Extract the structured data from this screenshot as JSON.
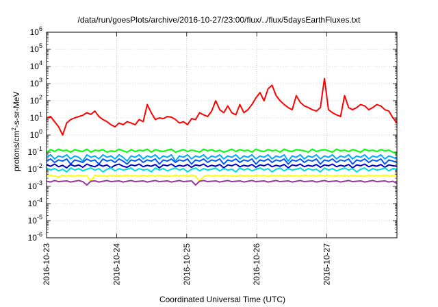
{
  "chart_data": {
    "type": "line",
    "title": "/data/run/goesPlots/archive/2016-10-27/23:00/flux/../flux/5daysEarthFluxes.txt",
    "xlabel": "Coordinated Universal Time (UTC)",
    "ylabel": {
      "prefix": "protons/cm",
      "sup": "2",
      "suffix": "-s-sr-MeV"
    },
    "y_scale": "log",
    "ylim": [
      1e-06,
      1000000.0
    ],
    "y_ticks": [
      {
        "exp": "-6"
      },
      {
        "exp": "-5"
      },
      {
        "exp": "-4"
      },
      {
        "exp": "-3"
      },
      {
        "exp": "-2"
      },
      {
        "exp": "-1"
      },
      {
        "exp": "0"
      },
      {
        "exp": "1"
      },
      {
        "exp": "2"
      },
      {
        "exp": "3"
      },
      {
        "exp": "4"
      },
      {
        "exp": "5"
      },
      {
        "exp": "6"
      }
    ],
    "y_tick_base": "10",
    "xlim": [
      "2016-10-23 00:00",
      "2016-10-28 00:00"
    ],
    "x_ticks": [
      "2016-10-23",
      "2016-10-24",
      "2016-10-25",
      "2016-10-26",
      "2016-10-27"
    ],
    "grid": true,
    "legend": "none",
    "series": [
      {
        "color": "#ff0000",
        "values": [
          10,
          12,
          6,
          3,
          1,
          5,
          8,
          10,
          12,
          14,
          20,
          16,
          25,
          12,
          8,
          6,
          4,
          3,
          5,
          4,
          6,
          5,
          4,
          8,
          6,
          60,
          20,
          8,
          10,
          9,
          12,
          11,
          8,
          5,
          6,
          4,
          9,
          8,
          20,
          15,
          12,
          25,
          100,
          30,
          20,
          50,
          20,
          15,
          60,
          20,
          30,
          60,
          150,
          300,
          100,
          500,
          800,
          200,
          100,
          60,
          40,
          30,
          200,
          80,
          50,
          40,
          30,
          25,
          40,
          2000,
          30,
          20,
          15,
          12,
          200,
          40,
          30,
          40,
          60,
          50,
          30,
          40,
          60,
          50,
          30,
          25,
          10,
          5
        ]
      },
      {
        "color": "#00ff00",
        "values": [
          0.1,
          0.14,
          0.11,
          0.15,
          0.12,
          0.13,
          0.1,
          0.14,
          0.12,
          0.11,
          0.15,
          0.1,
          0.13,
          0.12,
          0.14,
          0.1,
          0.12,
          0.11,
          0.15,
          0.12,
          0.1,
          0.14,
          0.11,
          0.13,
          0.12,
          0.15,
          0.1,
          0.14,
          0.12,
          0.11,
          0.13,
          0.15,
          0.1,
          0.12,
          0.14,
          0.11,
          0.13,
          0.12,
          0.1,
          0.15,
          0.12,
          0.14,
          0.11,
          0.13,
          0.1,
          0.12,
          0.15,
          0.11,
          0.14,
          0.12,
          0.13,
          0.1,
          0.15,
          0.12,
          0.11,
          0.14,
          0.12,
          0.13,
          0.1,
          0.15,
          0.12,
          0.11,
          0.14,
          0.13,
          0.12,
          0.1,
          0.15,
          0.11,
          0.13,
          0.14,
          0.12,
          0.1,
          0.15,
          0.12,
          0.13,
          0.11,
          0.14,
          0.12,
          0.1,
          0.15,
          0.12,
          0.13,
          0.11,
          0.14,
          0.12,
          0.13,
          0.1,
          0.08
        ]
      },
      {
        "color": "#00aaff",
        "values": [
          0.05,
          0.07,
          0.04,
          0.06,
          0.05,
          0.07,
          0.04,
          0.06,
          0.05,
          0.03,
          0.07,
          0.05,
          0.06,
          0.04,
          0.07,
          0.05,
          0.06,
          0.04,
          0.07,
          0.05,
          0.03,
          0.06,
          0.05,
          0.07,
          0.04,
          0.06,
          0.05,
          0.07,
          0.04,
          0.06,
          0.05,
          0.07,
          0.03,
          0.06,
          0.05,
          0.07,
          0.04,
          0.06,
          0.05,
          0.07,
          0.04,
          0.06,
          0.05,
          0.07,
          0.04,
          0.06,
          0.05,
          0.07,
          0.04,
          0.06,
          0.05,
          0.07,
          0.04,
          0.06,
          0.05,
          0.07,
          0.04,
          0.06,
          0.05,
          0.07,
          0.03,
          0.06,
          0.05,
          0.07,
          0.04,
          0.06,
          0.05,
          0.07,
          0.04,
          0.06,
          0.05,
          0.07,
          0.04,
          0.06,
          0.05,
          0.07,
          0.04,
          0.06,
          0.05,
          0.07,
          0.04,
          0.06,
          0.05,
          0.07,
          0.04,
          0.06,
          0.05,
          0.04
        ]
      },
      {
        "color": "#0055ff",
        "values": [
          0.03,
          0.04,
          0.025,
          0.035,
          0.03,
          0.04,
          0.02,
          0.035,
          0.03,
          0.025,
          0.04,
          0.03,
          0.035,
          0.02,
          0.04,
          0.03,
          0.035,
          0.025,
          0.04,
          0.03,
          0.02,
          0.035,
          0.03,
          0.04,
          0.025,
          0.035,
          0.03,
          0.04,
          0.02,
          0.035,
          0.03,
          0.04,
          0.025,
          0.035,
          0.03,
          0.04,
          0.02,
          0.035,
          0.03,
          0.04,
          0.025,
          0.035,
          0.03,
          0.04,
          0.02,
          0.035,
          0.03,
          0.04,
          0.025,
          0.035,
          0.03,
          0.04,
          0.02,
          0.035,
          0.03,
          0.04,
          0.025,
          0.035,
          0.03,
          0.04,
          0.02,
          0.035,
          0.03,
          0.04,
          0.025,
          0.035,
          0.03,
          0.04,
          0.02,
          0.035,
          0.03,
          0.04,
          0.025,
          0.035,
          0.03,
          0.04,
          0.02,
          0.035,
          0.03,
          0.04,
          0.025,
          0.035,
          0.03,
          0.04,
          0.02,
          0.035,
          0.03,
          0.025
        ]
      },
      {
        "color": "#0000cc",
        "values": [
          0.018,
          0.015,
          0.02,
          0.014,
          0.017,
          0.012,
          0.019,
          0.015,
          0.018,
          0.013,
          0.02,
          0.016,
          0.014,
          0.019,
          0.015,
          0.018,
          0.012,
          0.017,
          0.02,
          0.015,
          0.013,
          0.018,
          0.016,
          0.02,
          0.014,
          0.017,
          0.015,
          0.019,
          0.012,
          0.018,
          0.016,
          0.02,
          0.014,
          0.017,
          0.015,
          0.019,
          0.013,
          0.018,
          0.016,
          0.02,
          0.014,
          0.017,
          0.015,
          0.019,
          0.012,
          0.018,
          0.016,
          0.02,
          0.014,
          0.017,
          0.015,
          0.019,
          0.013,
          0.018,
          0.016,
          0.02,
          0.014,
          0.017,
          0.015,
          0.019,
          0.012,
          0.018,
          0.016,
          0.02,
          0.014,
          0.017,
          0.015,
          0.019,
          0.013,
          0.018,
          0.016,
          0.02,
          0.014,
          0.017,
          0.015,
          0.019,
          0.012,
          0.018,
          0.016,
          0.02,
          0.014,
          0.017,
          0.015,
          0.019,
          0.013,
          0.018,
          0.016,
          0.015
        ]
      },
      {
        "color": "#00dddd",
        "values": [
          0.012,
          0.009,
          0.011,
          0.008,
          0.01,
          0.007,
          0.012,
          0.009,
          0.011,
          0.008,
          0.01,
          0.012,
          0.009,
          0.011,
          0.007,
          0.01,
          0.012,
          0.008,
          0.011,
          0.009,
          0.01,
          0.012,
          0.008,
          0.011,
          0.009,
          0.01,
          0.007,
          0.012,
          0.009,
          0.011,
          0.008,
          0.01,
          0.012,
          0.009,
          0.011,
          0.007,
          0.01,
          0.012,
          0.008,
          0.011,
          0.009,
          0.01,
          0.012,
          0.008,
          0.011,
          0.009,
          0.01,
          0.007,
          0.012,
          0.009,
          0.011,
          0.008,
          0.01,
          0.012,
          0.009,
          0.011,
          0.007,
          0.01,
          0.012,
          0.008,
          0.011,
          0.009,
          0.01,
          0.012,
          0.008,
          0.011,
          0.009,
          0.01,
          0.007,
          0.012,
          0.009,
          0.011,
          0.008,
          0.01,
          0.012,
          0.009,
          0.011,
          0.007,
          0.01,
          0.012,
          0.008,
          0.011,
          0.009,
          0.01,
          0.012,
          0.008,
          0.011,
          0.01
        ]
      },
      {
        "color": "#ffff00",
        "values": [
          0.004,
          0.0045,
          0.004,
          0.0035,
          0.0045,
          0.004,
          0.0042,
          0.0038,
          0.0045,
          0.004,
          0.0043,
          0.002,
          0.0045,
          0.004,
          0.0042,
          0.0038,
          0.0045,
          0.004,
          0.0043,
          0.0039,
          0.0045,
          0.004,
          0.0042,
          0.0038,
          0.0045,
          0.004,
          0.0043,
          0.0039,
          0.0045,
          0.004,
          0.0042,
          0.0038,
          0.0045,
          0.004,
          0.0043,
          0.0039,
          0.0045,
          0.004,
          0.002,
          0.0038,
          0.0045,
          0.004,
          0.0043,
          0.0039,
          0.0045,
          0.004,
          0.0042,
          0.0038,
          0.0045,
          0.004,
          0.0043,
          0.0039,
          0.0045,
          0.004,
          0.0042,
          0.0038,
          0.0045,
          0.004,
          0.0043,
          0.0039,
          0.0045,
          0.004,
          0.0042,
          0.0038,
          0.0045,
          0.004,
          0.0043,
          0.0039,
          0.0045,
          0.004,
          0.0042,
          0.0038,
          0.0045,
          0.004,
          0.0043,
          0.0039,
          0.0045,
          0.004,
          0.0042,
          0.0038,
          0.0045,
          0.004,
          0.0043,
          0.0039,
          0.0045,
          0.004,
          0.0042,
          0.004
        ]
      },
      {
        "color": "#993399",
        "values": [
          0.002,
          0.0018,
          0.0022,
          0.0019,
          0.002,
          0.0021,
          0.0018,
          0.002,
          0.0022,
          0.0019,
          0.0012,
          0.002,
          0.0021,
          0.0018,
          0.002,
          0.0022,
          0.0019,
          0.002,
          0.0021,
          0.0018,
          0.002,
          0.0022,
          0.0019,
          0.002,
          0.0021,
          0.0018,
          0.002,
          0.0022,
          0.0019,
          0.002,
          0.0021,
          0.0018,
          0.002,
          0.0022,
          0.0019,
          0.002,
          0.0021,
          0.0012,
          0.002,
          0.0022,
          0.0019,
          0.002,
          0.0021,
          0.0018,
          0.002,
          0.0022,
          0.0019,
          0.002,
          0.0021,
          0.0018,
          0.002,
          0.0022,
          0.0019,
          0.002,
          0.0021,
          0.0018,
          0.002,
          0.0022,
          0.0019,
          0.002,
          0.0021,
          0.0018,
          0.002,
          0.0022,
          0.0019,
          0.002,
          0.0021,
          0.0018,
          0.002,
          0.0022,
          0.0019,
          0.002,
          0.0021,
          0.0018,
          0.002,
          0.0022,
          0.0019,
          0.002,
          0.0021,
          0.0018,
          0.002,
          0.0022,
          0.0019,
          0.002,
          0.0021,
          0.0018,
          0.002,
          0.0015
        ]
      }
    ]
  }
}
